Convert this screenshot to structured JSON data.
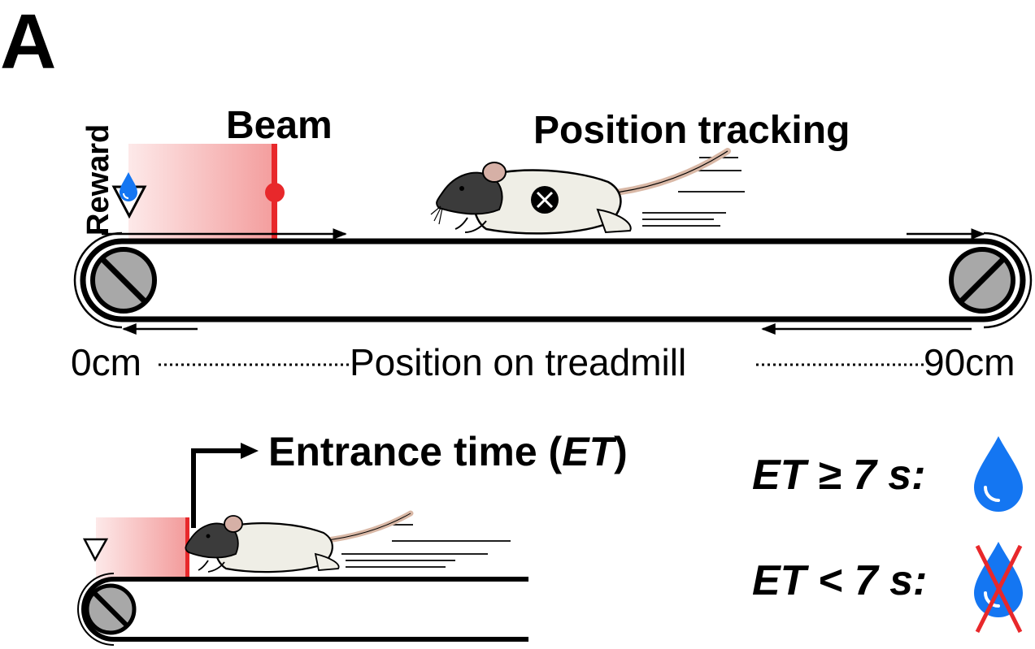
{
  "panel_label": "A",
  "labels": {
    "reward": "Reward",
    "beam": "Beam",
    "position_tracking": "Position tracking",
    "axis_start": "0cm",
    "axis_title": "Position on treadmill",
    "axis_end": "90cm"
  },
  "entrance": {
    "title_main": "Entrance time (",
    "title_abbr": "ET",
    "title_close": ")"
  },
  "rules": [
    {
      "abbr": "ET",
      "relation": "≥ 7 s:",
      "outcome": "reward-drop-icon"
    },
    {
      "abbr": "ET",
      "relation": "< 7 s:",
      "outcome": "no-reward-drop-icon"
    }
  ],
  "colors": {
    "beam_zone": "#f5a3a3",
    "beam_line": "#e8282b",
    "water": "#1476f2",
    "roller": "#a8a8a8",
    "cross": "#e8282b",
    "rat_body": "#efeee6",
    "rat_head": "#3b3b3b",
    "rat_tail": "#d9b8a6"
  }
}
